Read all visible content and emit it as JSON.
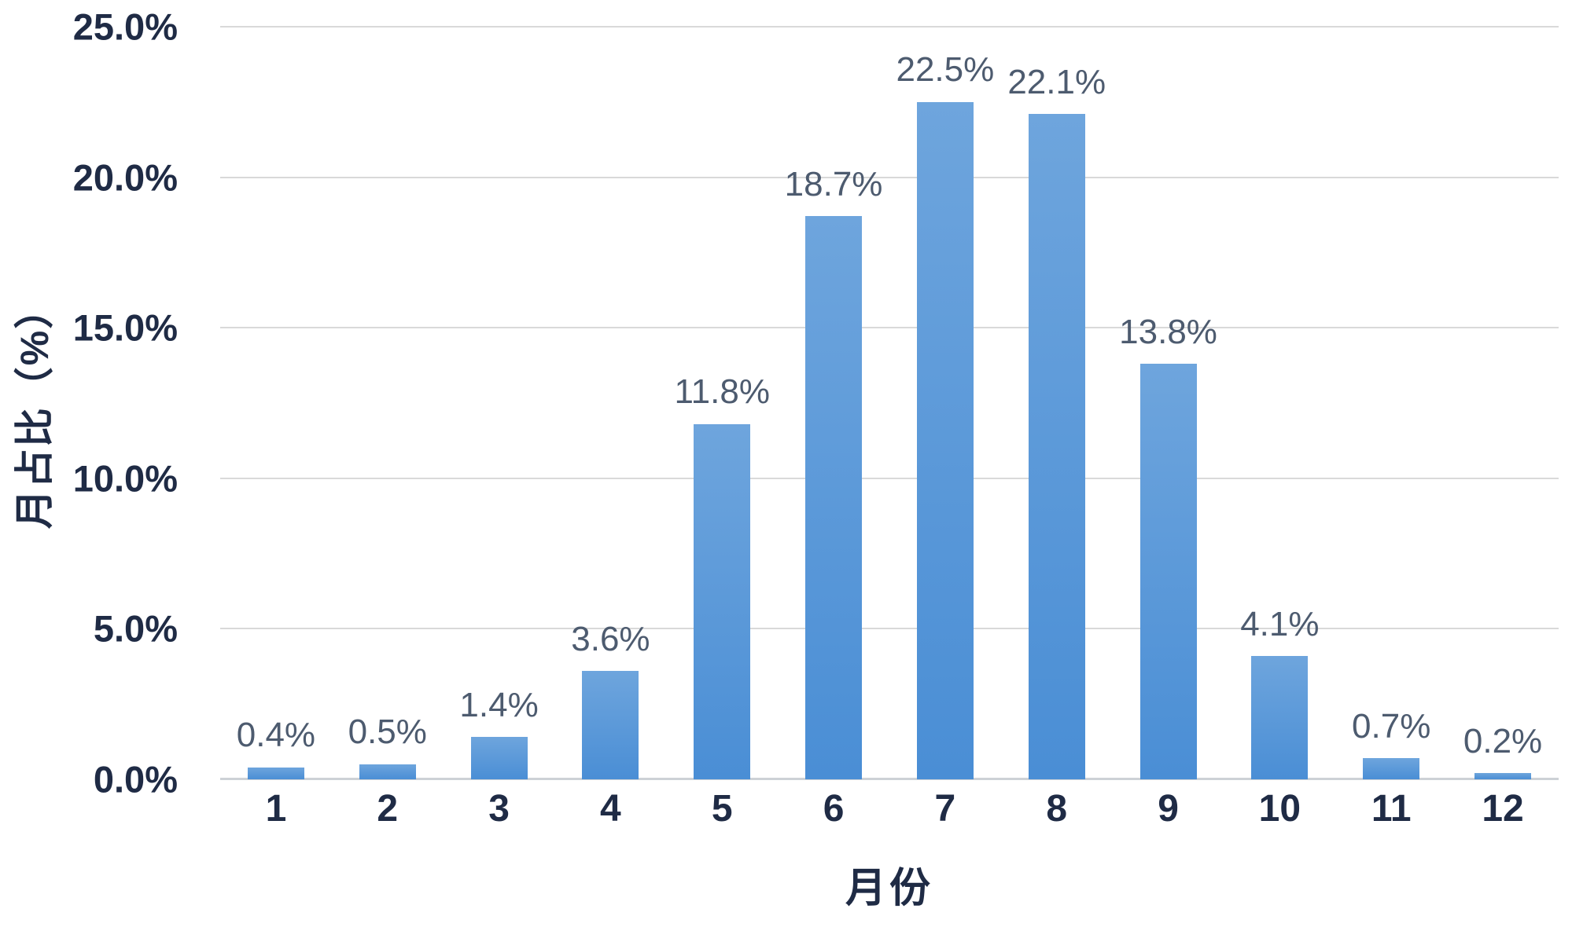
{
  "chart_data": {
    "type": "bar",
    "title": "",
    "xlabel": "月份",
    "ylabel": "月占比（%）",
    "categories": [
      "1",
      "2",
      "3",
      "4",
      "5",
      "6",
      "7",
      "8",
      "9",
      "10",
      "11",
      "12"
    ],
    "values": [
      0.4,
      0.5,
      1.4,
      3.6,
      11.8,
      18.7,
      22.5,
      22.1,
      13.8,
      4.1,
      0.7,
      0.2
    ],
    "data_labels": [
      "0.4%",
      "0.5%",
      "1.4%",
      "3.6%",
      "11.8%",
      "18.7%",
      "22.5%",
      "22.1%",
      "13.8%",
      "4.1%",
      "0.7%",
      "0.2%"
    ],
    "ylim": [
      0,
      25
    ],
    "ytick_step": 5,
    "ytick_labels": [
      "0.0%",
      "5.0%",
      "10.0%",
      "15.0%",
      "20.0%",
      "25.0%"
    ],
    "grid": "horizontal",
    "legend": "none",
    "colors": {
      "bar_gradient_top": "#6ea5dd",
      "bar_gradient_bottom": "#4a8ed5",
      "tick_label": "#1f2b45",
      "data_label": "#4d5b6f",
      "axis_title": "#1f2b45",
      "gridline": "#d9d9d9",
      "axis_line": "#cdd1d6",
      "background": "#ffffff"
    }
  }
}
